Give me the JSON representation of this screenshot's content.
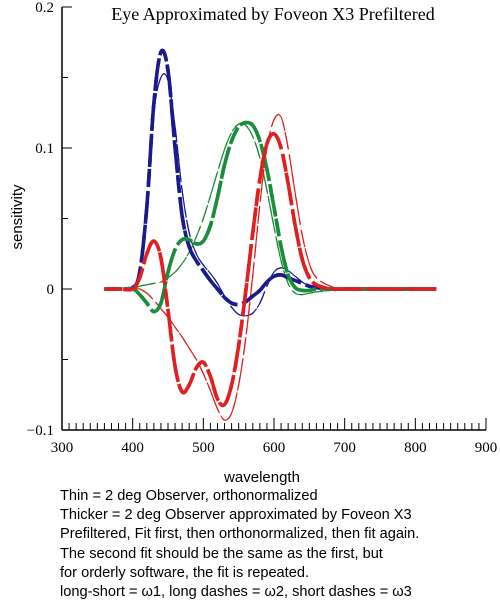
{
  "chart_data": {
    "type": "line",
    "title": "Eye Approximated by Foveon X3 Prefiltered",
    "xlabel": "wavelength",
    "ylabel": "sensitivity",
    "xlim": [
      300,
      900
    ],
    "ylim": [
      -0.1,
      0.2
    ],
    "x_ticks": [
      300,
      400,
      500,
      600,
      700,
      800,
      900
    ],
    "y_ticks": [
      {
        "value": 0.2,
        "label": "0.2"
      },
      {
        "value": 0.1,
        "label": "0.1"
      },
      {
        "value": 0,
        "label": "0"
      },
      {
        "value": -0.1,
        "label": "−0.1"
      }
    ],
    "grid": false,
    "series": [
      {
        "color": "#1a1a8c",
        "weight": "thin",
        "dash": "long-short",
        "x": [
          360,
          380,
          400,
          410,
          420,
          430,
          440,
          450,
          460,
          470,
          480,
          490,
          500,
          510,
          520,
          530,
          540,
          550,
          560,
          570,
          580,
          590,
          600,
          610,
          620,
          630,
          640,
          650,
          660,
          680,
          700,
          750,
          830
        ],
        "y": [
          0,
          0,
          0.001,
          0.012,
          0.06,
          0.125,
          0.15,
          0.148,
          0.115,
          0.07,
          0.04,
          0.025,
          0.017,
          0.011,
          0.004,
          -0.005,
          -0.013,
          -0.018,
          -0.019,
          -0.017,
          -0.01,
          0.002,
          0.012,
          0.015,
          0.013,
          0.009,
          0.005,
          0.002,
          0.001,
          0,
          0,
          0,
          0
        ]
      },
      {
        "color": "#1a1a8c",
        "weight": "thick",
        "dash": "long-short",
        "x": [
          360,
          380,
          400,
          410,
          420,
          430,
          440,
          450,
          460,
          470,
          480,
          490,
          500,
          510,
          520,
          530,
          540,
          550,
          560,
          570,
          580,
          590,
          600,
          610,
          620,
          630,
          640,
          650,
          660,
          680,
          700,
          750,
          830
        ],
        "y": [
          0,
          0,
          0.001,
          0.012,
          0.058,
          0.132,
          0.168,
          0.155,
          0.1,
          0.052,
          0.03,
          0.02,
          0.013,
          0.006,
          0,
          -0.006,
          -0.01,
          -0.011,
          -0.009,
          -0.005,
          -0.001,
          0.005,
          0.009,
          0.01,
          0.008,
          0.006,
          0.004,
          0.002,
          0.001,
          0,
          0,
          0,
          0
        ]
      },
      {
        "color": "#1a1a8c",
        "weight": "thin",
        "dash": "long dashes",
        "x": [
          360,
          380,
          400,
          410,
          420,
          430,
          440,
          450,
          460,
          470,
          480,
          490,
          500,
          510,
          520,
          530,
          540,
          550,
          560,
          570,
          580,
          590,
          600,
          610,
          620,
          630,
          640,
          650,
          660,
          680,
          700,
          750,
          830
        ],
        "y": [
          0,
          0,
          0.001,
          0.012,
          0.06,
          0.125,
          0.15,
          0.148,
          0.115,
          0.07,
          0.04,
          0.025,
          0.017,
          0.011,
          0.004,
          -0.005,
          -0.013,
          -0.018,
          -0.019,
          -0.017,
          -0.01,
          0.002,
          0.012,
          0.015,
          0.013,
          0.009,
          0.005,
          0.002,
          0.001,
          0,
          0,
          0,
          0
        ]
      },
      {
        "color": "#1a1a8c",
        "weight": "thick",
        "dash": "long dashes",
        "x": [
          360,
          380,
          400,
          410,
          420,
          430,
          440,
          450,
          460,
          470,
          480,
          490,
          500,
          510,
          520,
          530,
          540,
          550,
          560,
          570,
          580,
          590,
          600,
          610,
          620,
          630,
          640,
          650,
          660,
          680,
          700,
          750,
          830
        ],
        "y": [
          0,
          0,
          0.001,
          0.012,
          0.058,
          0.132,
          0.168,
          0.155,
          0.1,
          0.052,
          0.03,
          0.02,
          0.013,
          0.006,
          0,
          -0.006,
          -0.01,
          -0.011,
          -0.009,
          -0.005,
          -0.001,
          0.005,
          0.009,
          0.01,
          0.008,
          0.006,
          0.004,
          0.002,
          0.001,
          0,
          0,
          0,
          0
        ]
      },
      {
        "color": "#1a8c3a",
        "weight": "thin",
        "dash": "long-short",
        "x": [
          360,
          380,
          400,
          410,
          420,
          430,
          440,
          450,
          460,
          470,
          480,
          490,
          500,
          510,
          520,
          530,
          540,
          550,
          560,
          570,
          580,
          590,
          600,
          610,
          620,
          630,
          640,
          650,
          660,
          680,
          700,
          750,
          830
        ],
        "y": [
          0,
          0,
          0,
          0.002,
          0.003,
          0.004,
          0.005,
          0.008,
          0.012,
          0.018,
          0.026,
          0.037,
          0.05,
          0.066,
          0.083,
          0.099,
          0.111,
          0.117,
          0.116,
          0.108,
          0.093,
          0.07,
          0.044,
          0.02,
          0.004,
          -0.003,
          -0.004,
          -0.003,
          -0.002,
          -0.001,
          0,
          0,
          0
        ]
      },
      {
        "color": "#1a8c3a",
        "weight": "thick",
        "dash": "long-short",
        "x": [
          360,
          380,
          400,
          410,
          420,
          430,
          440,
          450,
          460,
          470,
          480,
          490,
          500,
          510,
          520,
          530,
          540,
          550,
          560,
          570,
          580,
          590,
          600,
          610,
          620,
          630,
          640,
          650,
          660,
          680,
          700,
          750,
          830
        ],
        "y": [
          0,
          0,
          0,
          -0.004,
          -0.01,
          -0.016,
          -0.01,
          0.012,
          0.028,
          0.035,
          0.035,
          0.032,
          0.034,
          0.045,
          0.065,
          0.088,
          0.105,
          0.115,
          0.118,
          0.116,
          0.105,
          0.085,
          0.058,
          0.03,
          0.01,
          0.001,
          -0.001,
          -0.001,
          0,
          0,
          0,
          0,
          0
        ]
      },
      {
        "color": "#1a8c3a",
        "weight": "thin",
        "dash": "long dashes",
        "x": [
          360,
          380,
          400,
          410,
          420,
          430,
          440,
          450,
          460,
          470,
          480,
          490,
          500,
          510,
          520,
          530,
          540,
          550,
          560,
          570,
          580,
          590,
          600,
          610,
          620,
          630,
          640,
          650,
          660,
          680,
          700,
          750,
          830
        ],
        "y": [
          0,
          0,
          0,
          0.002,
          0.003,
          0.004,
          0.005,
          0.008,
          0.012,
          0.018,
          0.026,
          0.037,
          0.05,
          0.066,
          0.083,
          0.099,
          0.111,
          0.117,
          0.116,
          0.108,
          0.093,
          0.07,
          0.044,
          0.02,
          0.004,
          -0.003,
          -0.004,
          -0.003,
          -0.002,
          -0.001,
          0,
          0,
          0
        ]
      },
      {
        "color": "#1a8c3a",
        "weight": "thick",
        "dash": "long dashes",
        "x": [
          360,
          380,
          400,
          410,
          420,
          430,
          440,
          450,
          460,
          470,
          480,
          490,
          500,
          510,
          520,
          530,
          540,
          550,
          560,
          570,
          580,
          590,
          600,
          610,
          620,
          630,
          640,
          650,
          660,
          680,
          700,
          750,
          830
        ],
        "y": [
          0,
          0,
          0,
          -0.004,
          -0.01,
          -0.016,
          -0.01,
          0.012,
          0.028,
          0.035,
          0.035,
          0.032,
          0.034,
          0.045,
          0.065,
          0.088,
          0.105,
          0.115,
          0.118,
          0.116,
          0.105,
          0.085,
          0.058,
          0.03,
          0.01,
          0.001,
          -0.001,
          -0.001,
          0,
          0,
          0,
          0,
          0
        ]
      },
      {
        "color": "#e02020",
        "weight": "thin",
        "dash": "long-short",
        "x": [
          360,
          380,
          400,
          410,
          420,
          430,
          440,
          450,
          460,
          470,
          480,
          490,
          500,
          510,
          520,
          530,
          540,
          550,
          560,
          570,
          580,
          590,
          600,
          610,
          620,
          630,
          640,
          650,
          660,
          680,
          700,
          750,
          830
        ],
        "y": [
          0,
          0,
          0,
          0,
          -0.003,
          -0.008,
          -0.014,
          -0.02,
          -0.027,
          -0.034,
          -0.042,
          -0.05,
          -0.06,
          -0.072,
          -0.085,
          -0.093,
          -0.088,
          -0.068,
          -0.035,
          0.01,
          0.06,
          0.1,
          0.12,
          0.122,
          0.1,
          0.068,
          0.038,
          0.018,
          0.008,
          0.002,
          0,
          0,
          0
        ]
      },
      {
        "color": "#e02020",
        "weight": "thick",
        "dash": "long-short",
        "x": [
          360,
          380,
          400,
          410,
          420,
          430,
          440,
          450,
          460,
          470,
          480,
          490,
          500,
          510,
          520,
          530,
          540,
          550,
          560,
          570,
          580,
          590,
          600,
          610,
          620,
          630,
          640,
          650,
          660,
          680,
          700,
          750,
          830
        ],
        "y": [
          0,
          0,
          0,
          0.008,
          0.025,
          0.034,
          0.022,
          -0.015,
          -0.055,
          -0.073,
          -0.068,
          -0.056,
          -0.052,
          -0.062,
          -0.078,
          -0.082,
          -0.068,
          -0.04,
          -0.002,
          0.04,
          0.078,
          0.103,
          0.11,
          0.1,
          0.075,
          0.045,
          0.021,
          0.008,
          0.003,
          0,
          0,
          0,
          0
        ]
      },
      {
        "color": "#e02020",
        "weight": "thin",
        "dash": "long dashes",
        "x": [
          360,
          380,
          400,
          410,
          420,
          430,
          440,
          450,
          460,
          470,
          480,
          490,
          500,
          510,
          520,
          530,
          540,
          550,
          560,
          570,
          580,
          590,
          600,
          610,
          620,
          630,
          640,
          650,
          660,
          680,
          700,
          750,
          830
        ],
        "y": [
          0,
          0,
          0,
          0,
          -0.003,
          -0.008,
          -0.014,
          -0.02,
          -0.027,
          -0.034,
          -0.042,
          -0.05,
          -0.06,
          -0.072,
          -0.085,
          -0.093,
          -0.088,
          -0.068,
          -0.035,
          0.01,
          0.06,
          0.1,
          0.12,
          0.122,
          0.1,
          0.068,
          0.038,
          0.018,
          0.008,
          0.002,
          0,
          0,
          0
        ]
      },
      {
        "color": "#e02020",
        "weight": "thick",
        "dash": "long dashes",
        "x": [
          360,
          380,
          400,
          410,
          420,
          430,
          440,
          450,
          460,
          470,
          480,
          490,
          500,
          510,
          520,
          530,
          540,
          550,
          560,
          570,
          580,
          590,
          600,
          610,
          620,
          630,
          640,
          650,
          660,
          680,
          700,
          750,
          830
        ],
        "y": [
          0,
          0,
          0,
          0.008,
          0.025,
          0.034,
          0.022,
          -0.015,
          -0.055,
          -0.073,
          -0.068,
          -0.056,
          -0.052,
          -0.062,
          -0.078,
          -0.082,
          -0.068,
          -0.04,
          -0.002,
          0.04,
          0.078,
          0.103,
          0.11,
          0.1,
          0.075,
          0.045,
          0.021,
          0.008,
          0.003,
          0,
          0,
          0,
          0
        ]
      }
    ],
    "line_styles": {
      "long-short": "18 5 5 5",
      "long dashes": "14 5"
    }
  },
  "caption": {
    "lines": [
      "Thin = 2 deg Observer, orthonormalized",
      "Thicker = 2 deg Observer approximated by Foveon X3",
      "Prefiltered, Fit first, then orthonormalized, then fit again.",
      "The second fit should be the same as the first, but",
      "for orderly software, the fit is repeated.",
      "long-short = ω1, long dashes = ω2, short dashes = ω3"
    ]
  }
}
